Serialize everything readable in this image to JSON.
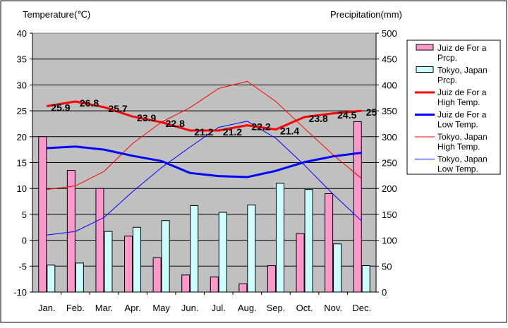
{
  "chart_data": {
    "type": "bar",
    "left_axis_title": "Temperature(℃)",
    "right_axis_title": "Precipitation(mm)",
    "categories": [
      "Jan.",
      "Feb.",
      "Mar.",
      "Apr.",
      "May",
      "Jun.",
      "Jul.",
      "Aug.",
      "Sep.",
      "Oct.",
      "Nov.",
      "Dec."
    ],
    "left_axis": {
      "min": -10,
      "max": 40,
      "ticks": [
        40,
        35,
        30,
        25,
        20,
        15,
        10,
        5,
        0,
        -5,
        -10
      ]
    },
    "right_axis": {
      "min": 0,
      "max": 500,
      "ticks": [
        500,
        450,
        400,
        350,
        300,
        250,
        200,
        150,
        100,
        50,
        0
      ]
    },
    "grid": true,
    "legend_position": "right",
    "bar_series": [
      {
        "name": "Juiz de For a Prcp.",
        "color": "#ff99cc",
        "values": [
          300,
          235,
          200,
          108,
          66,
          33,
          29,
          16,
          51,
          113,
          190,
          329
        ]
      },
      {
        "name": "Tokyo, Japan Prcp.",
        "color": "#ccffff",
        "values": [
          52,
          56,
          117,
          125,
          138,
          167,
          154,
          168,
          210,
          198,
          93,
          51
        ]
      }
    ],
    "line_series": [
      {
        "name": "Juiz de For a High Temp.",
        "color": "#ff0000",
        "width": "thick",
        "values": [
          25.9,
          26.8,
          25.7,
          23.9,
          22.8,
          21.2,
          21.2,
          22.2,
          21.4,
          23.8,
          24.5,
          25
        ],
        "labels": [
          "25.9",
          "26.8",
          "25.7",
          "23.9",
          "22.8",
          "21.2",
          "21.2",
          "22.2",
          "21.4",
          "23.8",
          "24.5",
          "25"
        ]
      },
      {
        "name": "Juiz de For a Low Temp.",
        "color": "#0000ff",
        "width": "thick",
        "values": [
          17.8,
          18.1,
          17.5,
          16.3,
          15.3,
          13.0,
          12.4,
          12.2,
          13.4,
          15.1,
          16.2,
          16.9
        ]
      },
      {
        "name": "Tokyo, Japan High Temp.",
        "color": "#ff0000",
        "width": "thin",
        "values": [
          9.8,
          10.5,
          13.3,
          18.7,
          22.8,
          25.6,
          29.3,
          30.7,
          26.8,
          21.6,
          16.5,
          11.9
        ]
      },
      {
        "name": "Tokyo, Japan Low Temp.",
        "color": "#0000ff",
        "width": "thin",
        "values": [
          1.0,
          1.7,
          4.4,
          9.4,
          14.0,
          18.0,
          21.8,
          23.0,
          19.7,
          14.5,
          8.9,
          3.7
        ]
      }
    ],
    "legend": [
      {
        "text": "Juiz de For a Prcp."
      },
      {
        "text": "Tokyo, Japan Prcp."
      },
      {
        "text": "Juiz de For a High Temp."
      },
      {
        "text": "Juiz de For a Low Temp."
      },
      {
        "text": "Tokyo, Japan High Temp."
      },
      {
        "text": "Tokyo, Japan Low Temp."
      }
    ]
  }
}
